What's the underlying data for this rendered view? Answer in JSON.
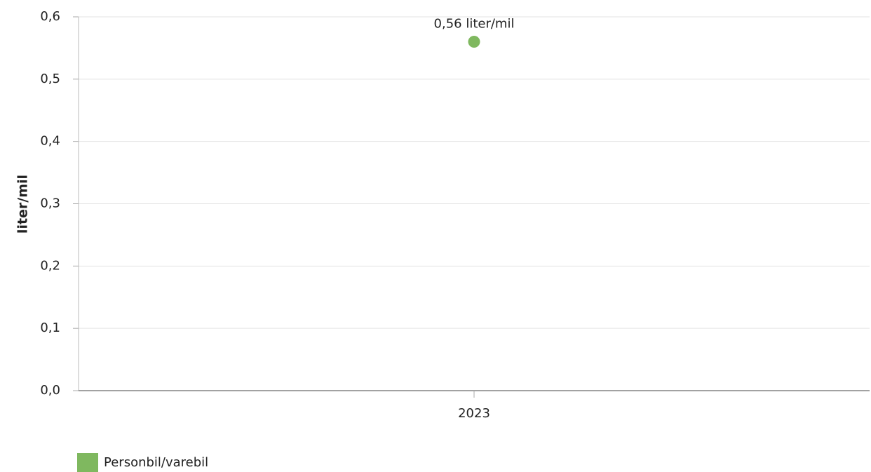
{
  "chart_data": {
    "type": "scatter",
    "categories": [
      "2023"
    ],
    "series": [
      {
        "name": "Personbil/varebil",
        "values": [
          0.56
        ],
        "color": "#7fb85f",
        "data_labels": [
          "0,56 liter/mil"
        ]
      }
    ],
    "ylabel": "liter/mil",
    "xlabel": "",
    "ylim": [
      0,
      0.6
    ],
    "yticks": [
      "0,0",
      "0,1",
      "0,2",
      "0,3",
      "0,4",
      "0,5",
      "0,6"
    ],
    "grid": true,
    "legend_position": "bottom-left"
  }
}
